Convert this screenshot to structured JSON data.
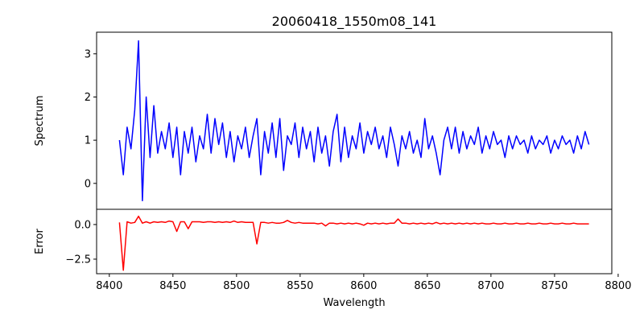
{
  "chart_data": {
    "type": "line",
    "title": "20060418_1550m08_141",
    "xlabel": "Wavelength",
    "xlim": [
      8390,
      8795
    ],
    "xticks": [
      8400,
      8450,
      8500,
      8550,
      8600,
      8650,
      8700,
      8750,
      8800
    ],
    "x_start": 8408,
    "x_step": 3,
    "panels": [
      {
        "name": "spectrum",
        "ylabel": "Spectrum",
        "ylim": [
          -0.6,
          3.5
        ],
        "yticks": [
          0,
          1,
          2,
          3
        ],
        "ytick_labels": [
          "0",
          "1",
          "2",
          "3"
        ],
        "color": "#0000ff",
        "values": [
          1.0,
          0.2,
          1.3,
          0.8,
          1.7,
          3.3,
          -0.4,
          2.0,
          0.6,
          1.8,
          0.7,
          1.2,
          0.8,
          1.4,
          0.6,
          1.3,
          0.2,
          1.2,
          0.7,
          1.3,
          0.5,
          1.1,
          0.8,
          1.6,
          0.7,
          1.5,
          0.9,
          1.4,
          0.6,
          1.2,
          0.5,
          1.1,
          0.8,
          1.3,
          0.6,
          1.1,
          1.5,
          0.2,
          1.2,
          0.7,
          1.4,
          0.6,
          1.5,
          0.3,
          1.1,
          0.9,
          1.4,
          0.6,
          1.3,
          0.8,
          1.2,
          0.5,
          1.3,
          0.7,
          1.1,
          0.4,
          1.2,
          1.6,
          0.5,
          1.3,
          0.6,
          1.1,
          0.8,
          1.4,
          0.7,
          1.2,
          0.9,
          1.3,
          0.8,
          1.1,
          0.6,
          1.3,
          0.9,
          0.4,
          1.1,
          0.8,
          1.2,
          0.7,
          1.0,
          0.6,
          1.5,
          0.8,
          1.1,
          0.7,
          0.2,
          1.0,
          1.3,
          0.8,
          1.3,
          0.7,
          1.2,
          0.8,
          1.1,
          0.9,
          1.3,
          0.7,
          1.1,
          0.8,
          1.2,
          0.9,
          1.0,
          0.6,
          1.1,
          0.8,
          1.1,
          0.9,
          1.0,
          0.7,
          1.1,
          0.8,
          1.0,
          0.9,
          1.1,
          0.7,
          1.0,
          0.8,
          1.1,
          0.9,
          1.0,
          0.7,
          1.1,
          0.8,
          1.2,
          0.9
        ]
      },
      {
        "name": "error",
        "ylabel": "Error",
        "ylim": [
          -3.55,
          1.1
        ],
        "yticks": [
          0,
          -2.5
        ],
        "ytick_labels": [
          "0.0",
          "−2.5"
        ],
        "color": "#ff0000",
        "values": [
          0.15,
          -3.3,
          0.2,
          0.1,
          0.15,
          0.6,
          0.1,
          0.2,
          0.1,
          0.2,
          0.15,
          0.2,
          0.15,
          0.25,
          0.2,
          -0.5,
          0.2,
          0.2,
          -0.3,
          0.2,
          0.2,
          0.2,
          0.15,
          0.2,
          0.2,
          0.15,
          0.2,
          0.15,
          0.2,
          0.15,
          0.25,
          0.15,
          0.2,
          0.15,
          0.15,
          0.15,
          -1.4,
          0.15,
          0.15,
          0.1,
          0.15,
          0.1,
          0.1,
          0.15,
          0.3,
          0.15,
          0.1,
          0.15,
          0.1,
          0.1,
          0.1,
          0.1,
          0.05,
          0.1,
          -0.1,
          0.1,
          0.1,
          0.05,
          0.1,
          0.05,
          0.1,
          0.05,
          0.1,
          0.05,
          -0.05,
          0.1,
          0.05,
          0.1,
          0.05,
          0.1,
          0.05,
          0.1,
          0.1,
          0.4,
          0.1,
          0.1,
          0.05,
          0.1,
          0.05,
          0.1,
          0.05,
          0.1,
          0.05,
          0.15,
          0.05,
          0.1,
          0.05,
          0.1,
          0.05,
          0.1,
          0.05,
          0.1,
          0.05,
          0.1,
          0.05,
          0.1,
          0.05,
          0.05,
          0.1,
          0.05,
          0.05,
          0.1,
          0.05,
          0.05,
          0.1,
          0.05,
          0.05,
          0.1,
          0.05,
          0.05,
          0.1,
          0.05,
          0.05,
          0.1,
          0.05,
          0.05,
          0.1,
          0.05,
          0.05,
          0.1,
          0.05,
          0.05,
          0.05,
          0.05
        ]
      }
    ]
  }
}
